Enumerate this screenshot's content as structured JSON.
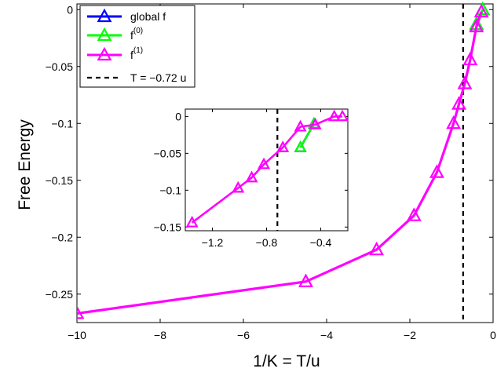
{
  "chart_data": [
    {
      "type": "line",
      "role": "main",
      "xlabel": "1/K = T/u",
      "ylabel": "Free Energy",
      "xlim": [
        -10,
        0
      ],
      "ylim": [
        -0.275,
        0.005
      ],
      "xticks": [
        -10,
        -8,
        -6,
        -4,
        -2,
        0
      ],
      "xtick_labels": [
        "−10",
        "−8",
        "−6",
        "−4",
        "−2",
        "0"
      ],
      "yticks": [
        0,
        -0.05,
        -0.1,
        -0.15,
        -0.2,
        -0.25
      ],
      "ytick_labels": [
        "0",
        "−0.05",
        "−0.1",
        "−0.15",
        "−0.2",
        "−0.25"
      ],
      "vline": {
        "x": -0.72,
        "style": "dashed",
        "color": "#000000"
      },
      "legend": {
        "position": "top-left",
        "entries": [
          {
            "base": "global f",
            "sup": "",
            "color": "#0000ff",
            "style": "line-triangle"
          },
          {
            "base": "f",
            "sup": "(0)",
            "color": "#00ff00",
            "style": "line-triangle"
          },
          {
            "base": "f",
            "sup": "(1)",
            "color": "#ff00ff",
            "style": "line-triangle"
          },
          {
            "base": "T = −0.72 u",
            "sup": "",
            "color": "#000000",
            "style": "dashed"
          }
        ]
      },
      "series": [
        {
          "name": "global f",
          "color": "#0000ff",
          "x": [
            -0.4,
            -0.25
          ],
          "y": [
            -0.013,
            0.0
          ]
        },
        {
          "name": "f(0)",
          "color": "#00ff00",
          "x": [
            -0.4,
            -0.25
          ],
          "y": [
            -0.013,
            0.0
          ]
        },
        {
          "name": "f(1)",
          "color": "#ff00ff",
          "x": [
            -10,
            -4.5,
            -2.8,
            -1.9,
            -1.35,
            -0.95,
            -0.82,
            -0.68,
            -0.55,
            -0.4,
            -0.28
          ],
          "y": [
            -0.267,
            -0.239,
            -0.211,
            -0.181,
            -0.143,
            -0.1,
            -0.083,
            -0.065,
            -0.044,
            -0.015,
            -0.002
          ]
        }
      ]
    },
    {
      "type": "line",
      "role": "inset",
      "xlim": [
        -1.4,
        -0.2
      ],
      "ylim": [
        -0.155,
        0.01
      ],
      "xticks": [
        -1.2,
        -0.8,
        -0.4
      ],
      "xtick_labels": [
        "−1.2",
        "−0.8",
        "−0.4"
      ],
      "yticks": [
        0,
        -0.05,
        -0.1,
        -0.15
      ],
      "ytick_labels": [
        "0",
        "−0.05",
        "−0.1",
        "−0.15"
      ],
      "vline": {
        "x": -0.72,
        "style": "dashed",
        "color": "#000000"
      },
      "series": [
        {
          "name": "global f",
          "color": "#0000ff",
          "x": [
            -0.55,
            -0.45
          ],
          "y": [
            -0.042,
            -0.01
          ]
        },
        {
          "name": "f(0)",
          "color": "#00ff00",
          "x": [
            -0.55,
            -0.45
          ],
          "y": [
            -0.042,
            -0.01
          ]
        },
        {
          "name": "f(1)",
          "color": "#ff00ff",
          "x": [
            -1.35,
            -1.01,
            -0.91,
            -0.82,
            -0.68,
            -0.55,
            -0.44,
            -0.3,
            -0.24
          ],
          "y": [
            -0.144,
            -0.097,
            -0.083,
            -0.065,
            -0.042,
            -0.014,
            -0.011,
            0.0,
            0.0
          ]
        }
      ]
    }
  ]
}
